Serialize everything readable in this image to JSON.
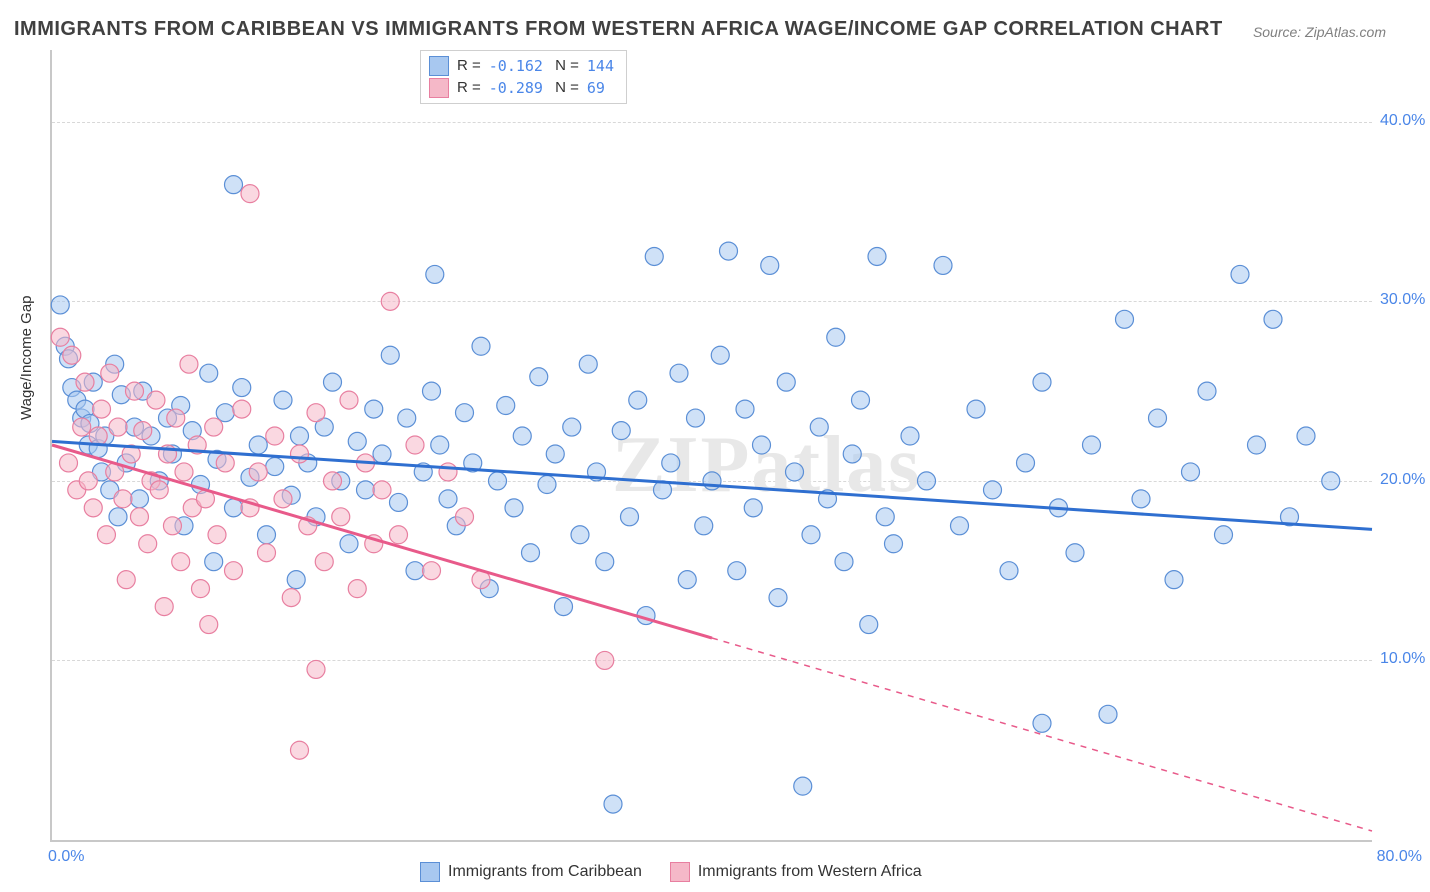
{
  "title": "IMMIGRANTS FROM CARIBBEAN VS IMMIGRANTS FROM WESTERN AFRICA WAGE/INCOME GAP CORRELATION CHART",
  "source": "Source: ZipAtlas.com",
  "watermark": "ZIPatlas",
  "ylabel": "Wage/Income Gap",
  "chart": {
    "type": "scatter",
    "background_color": "#ffffff",
    "grid_color": "#d8d8d8",
    "axis_color": "#c8c8c8",
    "tick_color": "#4a86e8",
    "xlim": [
      0,
      80
    ],
    "ylim": [
      0,
      44
    ],
    "yticks": [
      10,
      20,
      30,
      40
    ],
    "ytick_labels": [
      "10.0%",
      "20.0%",
      "30.0%",
      "40.0%"
    ],
    "xtick_left": "0.0%",
    "xtick_right": "80.0%",
    "marker_radius": 9,
    "marker_opacity": 0.55,
    "line_width": 3,
    "series": [
      {
        "name": "Immigrants from Caribbean",
        "color_fill": "#a8c8f0",
        "color_stroke": "#5b8fd6",
        "R": "-0.162",
        "N": "144",
        "trend": {
          "x1": 0,
          "y1": 22.2,
          "x2": 80,
          "y2": 17.3,
          "color": "#2f6fd0",
          "solid_until_x": 80
        },
        "points": [
          [
            0.5,
            29.8
          ],
          [
            0.8,
            27.5
          ],
          [
            1.0,
            26.8
          ],
          [
            1.2,
            25.2
          ],
          [
            1.5,
            24.5
          ],
          [
            1.8,
            23.5
          ],
          [
            2.0,
            24.0
          ],
          [
            2.2,
            22.0
          ],
          [
            2.3,
            23.2
          ],
          [
            2.5,
            25.5
          ],
          [
            2.8,
            21.8
          ],
          [
            3.0,
            20.5
          ],
          [
            3.2,
            22.5
          ],
          [
            3.5,
            19.5
          ],
          [
            3.8,
            26.5
          ],
          [
            4.0,
            18.0
          ],
          [
            4.2,
            24.8
          ],
          [
            4.5,
            21.0
          ],
          [
            5.0,
            23.0
          ],
          [
            5.3,
            19.0
          ],
          [
            5.5,
            25.0
          ],
          [
            6.0,
            22.5
          ],
          [
            6.5,
            20.0
          ],
          [
            7.0,
            23.5
          ],
          [
            7.3,
            21.5
          ],
          [
            7.8,
            24.2
          ],
          [
            8.0,
            17.5
          ],
          [
            8.5,
            22.8
          ],
          [
            9.0,
            19.8
          ],
          [
            9.5,
            26.0
          ],
          [
            9.8,
            15.5
          ],
          [
            10.0,
            21.2
          ],
          [
            10.5,
            23.8
          ],
          [
            11.0,
            18.5
          ],
          [
            11.5,
            25.2
          ],
          [
            12.0,
            20.2
          ],
          [
            11.0,
            36.5
          ],
          [
            12.5,
            22.0
          ],
          [
            13.0,
            17.0
          ],
          [
            13.5,
            20.8
          ],
          [
            14.0,
            24.5
          ],
          [
            14.5,
            19.2
          ],
          [
            14.8,
            14.5
          ],
          [
            15.0,
            22.5
          ],
          [
            15.5,
            21.0
          ],
          [
            16.0,
            18.0
          ],
          [
            16.5,
            23.0
          ],
          [
            17.0,
            25.5
          ],
          [
            17.5,
            20.0
          ],
          [
            18.0,
            16.5
          ],
          [
            18.5,
            22.2
          ],
          [
            19.0,
            19.5
          ],
          [
            19.5,
            24.0
          ],
          [
            20.0,
            21.5
          ],
          [
            20.5,
            27.0
          ],
          [
            21.0,
            18.8
          ],
          [
            21.5,
            23.5
          ],
          [
            22.0,
            15.0
          ],
          [
            22.5,
            20.5
          ],
          [
            23.0,
            25.0
          ],
          [
            23.2,
            31.5
          ],
          [
            23.5,
            22.0
          ],
          [
            24.0,
            19.0
          ],
          [
            24.5,
            17.5
          ],
          [
            25.0,
            23.8
          ],
          [
            25.5,
            21.0
          ],
          [
            26.0,
            27.5
          ],
          [
            26.5,
            14.0
          ],
          [
            27.0,
            20.0
          ],
          [
            27.5,
            24.2
          ],
          [
            28.0,
            18.5
          ],
          [
            28.5,
            22.5
          ],
          [
            29.0,
            16.0
          ],
          [
            29.5,
            25.8
          ],
          [
            30.0,
            19.8
          ],
          [
            30.5,
            21.5
          ],
          [
            31.0,
            13.0
          ],
          [
            31.5,
            23.0
          ],
          [
            32.0,
            17.0
          ],
          [
            32.5,
            26.5
          ],
          [
            33.0,
            20.5
          ],
          [
            33.5,
            15.5
          ],
          [
            34.0,
            2.0
          ],
          [
            34.5,
            22.8
          ],
          [
            35.0,
            18.0
          ],
          [
            35.5,
            24.5
          ],
          [
            36.0,
            12.5
          ],
          [
            36.5,
            32.5
          ],
          [
            37.0,
            19.5
          ],
          [
            37.5,
            21.0
          ],
          [
            38.0,
            26.0
          ],
          [
            38.5,
            14.5
          ],
          [
            39.0,
            23.5
          ],
          [
            39.5,
            17.5
          ],
          [
            40.0,
            20.0
          ],
          [
            40.5,
            27.0
          ],
          [
            41.0,
            32.8
          ],
          [
            41.5,
            15.0
          ],
          [
            42.0,
            24.0
          ],
          [
            42.5,
            18.5
          ],
          [
            43.0,
            22.0
          ],
          [
            43.5,
            32.0
          ],
          [
            44.0,
            13.5
          ],
          [
            44.5,
            25.5
          ],
          [
            45.0,
            20.5
          ],
          [
            45.5,
            3.0
          ],
          [
            46.0,
            17.0
          ],
          [
            46.5,
            23.0
          ],
          [
            47.0,
            19.0
          ],
          [
            47.5,
            28.0
          ],
          [
            48.0,
            15.5
          ],
          [
            48.5,
            21.5
          ],
          [
            49.0,
            24.5
          ],
          [
            49.5,
            12.0
          ],
          [
            50.0,
            32.5
          ],
          [
            50.5,
            18.0
          ],
          [
            51.0,
            16.5
          ],
          [
            52.0,
            22.5
          ],
          [
            53.0,
            20.0
          ],
          [
            54.0,
            32.0
          ],
          [
            55.0,
            17.5
          ],
          [
            56.0,
            24.0
          ],
          [
            57.0,
            19.5
          ],
          [
            58.0,
            15.0
          ],
          [
            59.0,
            21.0
          ],
          [
            60.0,
            25.5
          ],
          [
            61.0,
            18.5
          ],
          [
            62.0,
            16.0
          ],
          [
            63.0,
            22.0
          ],
          [
            64.0,
            7.0
          ],
          [
            65.0,
            29.0
          ],
          [
            66.0,
            19.0
          ],
          [
            67.0,
            23.5
          ],
          [
            68.0,
            14.5
          ],
          [
            69.0,
            20.5
          ],
          [
            70.0,
            25.0
          ],
          [
            71.0,
            17.0
          ],
          [
            72.0,
            31.5
          ],
          [
            73.0,
            22.0
          ],
          [
            74.0,
            29.0
          ],
          [
            75.0,
            18.0
          ],
          [
            76.0,
            22.5
          ],
          [
            77.5,
            20.0
          ],
          [
            60.0,
            6.5
          ]
        ]
      },
      {
        "name": "Immigrants from Western Africa",
        "color_fill": "#f5b8c8",
        "color_stroke": "#e87fa0",
        "R": "-0.289",
        "N": "69",
        "trend": {
          "x1": 0,
          "y1": 22.0,
          "x2": 80,
          "y2": 0.5,
          "color": "#e85a8a",
          "solid_until_x": 40
        },
        "points": [
          [
            0.5,
            28.0
          ],
          [
            1.0,
            21.0
          ],
          [
            1.2,
            27.0
          ],
          [
            1.5,
            19.5
          ],
          [
            1.8,
            23.0
          ],
          [
            2.0,
            25.5
          ],
          [
            2.2,
            20.0
          ],
          [
            2.5,
            18.5
          ],
          [
            2.8,
            22.5
          ],
          [
            3.0,
            24.0
          ],
          [
            3.3,
            17.0
          ],
          [
            3.5,
            26.0
          ],
          [
            3.8,
            20.5
          ],
          [
            4.0,
            23.0
          ],
          [
            4.3,
            19.0
          ],
          [
            4.5,
            14.5
          ],
          [
            4.8,
            21.5
          ],
          [
            5.0,
            25.0
          ],
          [
            5.3,
            18.0
          ],
          [
            5.5,
            22.8
          ],
          [
            5.8,
            16.5
          ],
          [
            6.0,
            20.0
          ],
          [
            6.3,
            24.5
          ],
          [
            6.5,
            19.5
          ],
          [
            6.8,
            13.0
          ],
          [
            7.0,
            21.5
          ],
          [
            7.3,
            17.5
          ],
          [
            7.5,
            23.5
          ],
          [
            7.8,
            15.5
          ],
          [
            8.0,
            20.5
          ],
          [
            8.3,
            26.5
          ],
          [
            8.5,
            18.5
          ],
          [
            8.8,
            22.0
          ],
          [
            9.0,
            14.0
          ],
          [
            9.3,
            19.0
          ],
          [
            9.5,
            12.0
          ],
          [
            9.8,
            23.0
          ],
          [
            10.0,
            17.0
          ],
          [
            10.5,
            21.0
          ],
          [
            11.0,
            15.0
          ],
          [
            11.5,
            24.0
          ],
          [
            12.0,
            18.5
          ],
          [
            12.5,
            20.5
          ],
          [
            12.0,
            36.0
          ],
          [
            13.0,
            16.0
          ],
          [
            13.5,
            22.5
          ],
          [
            14.0,
            19.0
          ],
          [
            14.5,
            13.5
          ],
          [
            15.0,
            21.5
          ],
          [
            15.5,
            17.5
          ],
          [
            16.0,
            23.8
          ],
          [
            16.5,
            15.5
          ],
          [
            17.0,
            20.0
          ],
          [
            17.5,
            18.0
          ],
          [
            18.0,
            24.5
          ],
          [
            18.5,
            14.0
          ],
          [
            16.0,
            9.5
          ],
          [
            19.0,
            21.0
          ],
          [
            19.5,
            16.5
          ],
          [
            20.0,
            19.5
          ],
          [
            20.5,
            30.0
          ],
          [
            21.0,
            17.0
          ],
          [
            22.0,
            22.0
          ],
          [
            23.0,
            15.0
          ],
          [
            24.0,
            20.5
          ],
          [
            25.0,
            18.0
          ],
          [
            26.0,
            14.5
          ],
          [
            15.0,
            5.0
          ],
          [
            33.5,
            10.0
          ]
        ]
      }
    ]
  }
}
